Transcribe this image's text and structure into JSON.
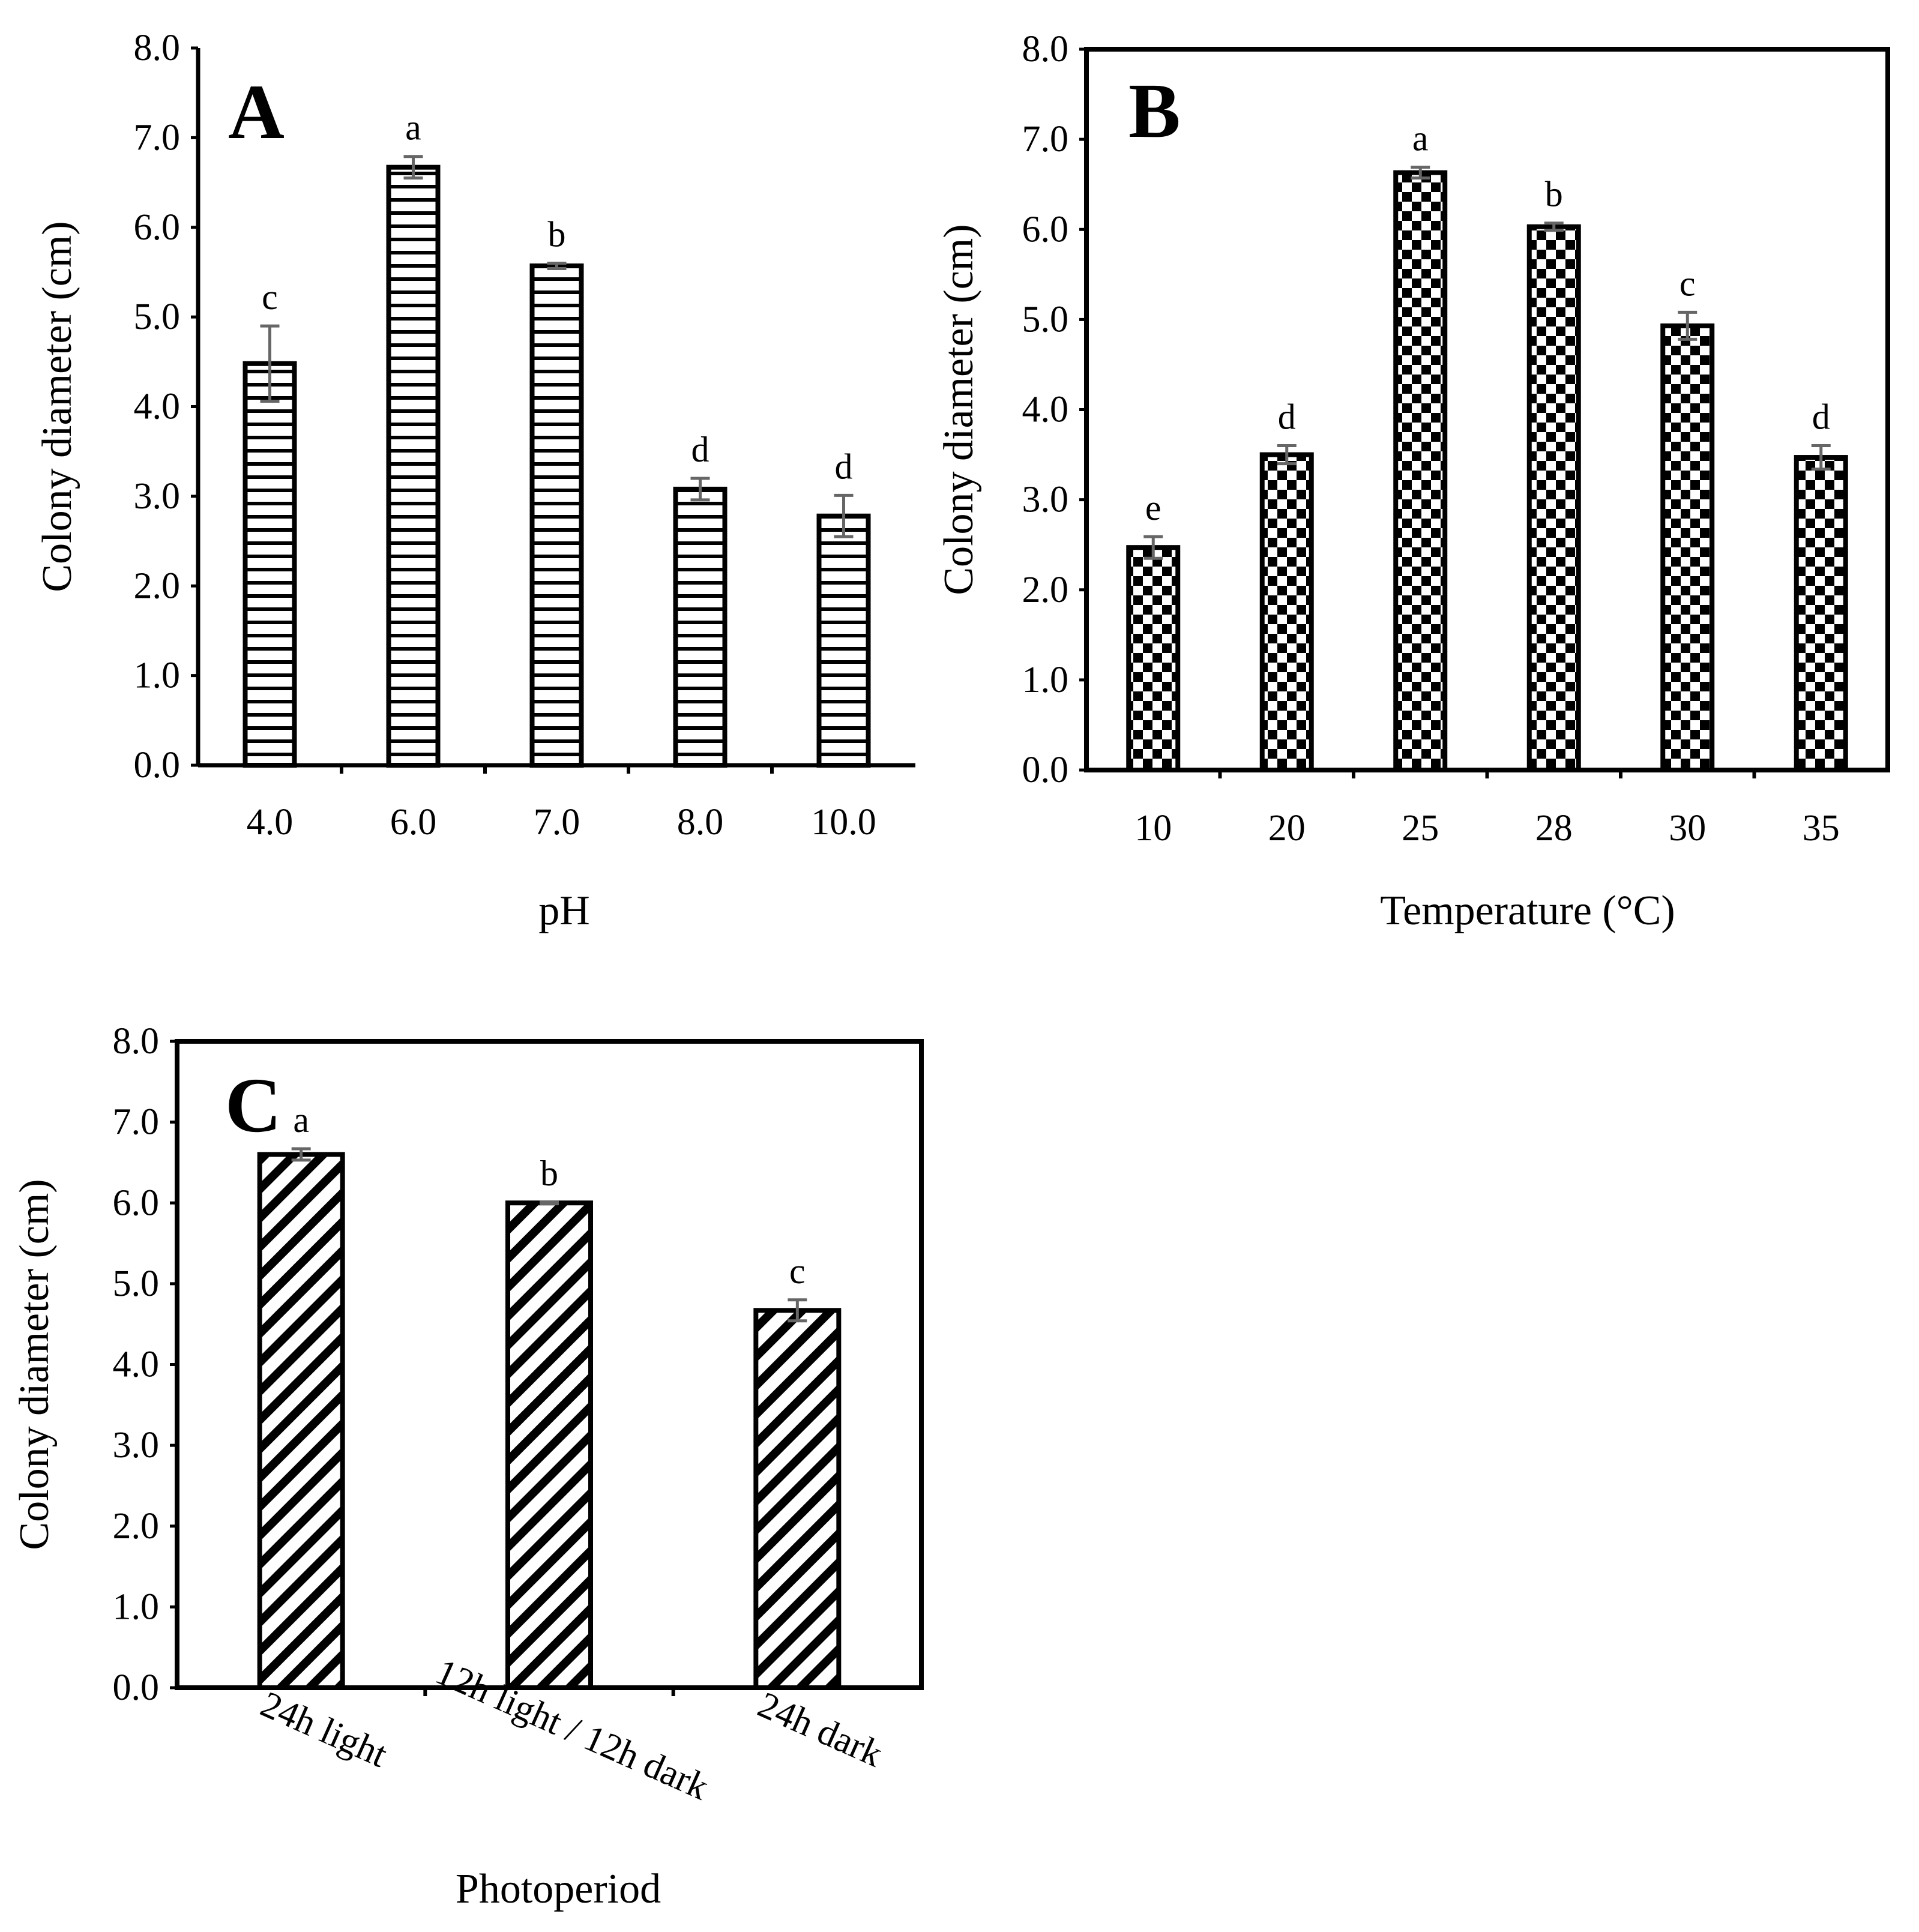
{
  "chart_data": [
    {
      "panel": "A",
      "type": "bar",
      "pattern": "hlines",
      "categories": [
        "4.0",
        "6.0",
        "7.0",
        "8.0",
        "10.0"
      ],
      "values": [
        4.48,
        6.67,
        5.57,
        3.08,
        2.78
      ],
      "errors": [
        0.42,
        0.12,
        0.03,
        0.12,
        0.23
      ],
      "significance": [
        "c",
        "a",
        "b",
        "d",
        "d"
      ],
      "xlabel": "pH",
      "ylabel": "Colony diameter (cm)",
      "ylim": [
        0,
        8
      ],
      "yticks": [
        "0.0",
        "1.0",
        "2.0",
        "3.0",
        "4.0",
        "5.0",
        "6.0",
        "7.0",
        "8.0"
      ]
    },
    {
      "panel": "B",
      "type": "bar",
      "pattern": "checker",
      "categories": [
        "10",
        "20",
        "25",
        "28",
        "30",
        "35"
      ],
      "values": [
        2.47,
        3.5,
        6.63,
        6.03,
        4.93,
        3.47
      ],
      "errors": [
        0.12,
        0.1,
        0.06,
        0.04,
        0.15,
        0.13
      ],
      "significance": [
        "e",
        "d",
        "a",
        "b",
        "c",
        "d"
      ],
      "xlabel": "Temperature (°C)",
      "ylabel": "Colony diameter (cm)",
      "ylim": [
        0,
        8
      ],
      "yticks": [
        "0.0",
        "1.0",
        "2.0",
        "3.0",
        "4.0",
        "5.0",
        "6.0",
        "7.0",
        "8.0"
      ]
    },
    {
      "panel": "C",
      "type": "bar",
      "pattern": "diagonal",
      "categories": [
        "24h light",
        "12h light / 12h dark",
        "24h dark"
      ],
      "values": [
        6.6,
        6.0,
        4.67
      ],
      "errors": [
        0.07,
        0.01,
        0.13
      ],
      "significance": [
        "a",
        "b",
        "c"
      ],
      "xlabel": "Photoperiod",
      "ylabel": "Colony diameter (cm)",
      "ylim": [
        0,
        8
      ],
      "yticks": [
        "0.0",
        "1.0",
        "2.0",
        "3.0",
        "4.0",
        "5.0",
        "6.0",
        "7.0",
        "8.0"
      ]
    }
  ]
}
